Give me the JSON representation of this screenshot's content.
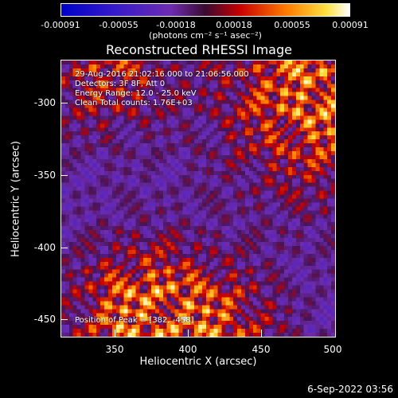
{
  "colorbar": {
    "ticks": [
      "-0.00091",
      "-0.00055",
      "-0.00018",
      "0.00018",
      "0.00055",
      "0.00091"
    ],
    "units": "(photons cm⁻² s⁻¹ asec⁻²)"
  },
  "title": "Reconstructed RHESSI Image",
  "annotations": {
    "time": "29-Aug-2016 21:02:16.000 to 21:06:56.000",
    "detectors": "Detectors: 3F 8F, Att 0",
    "energy": "Energy Range: 12.0 - 25.0 keV",
    "method": "Clean    Total counts: 1.76E+03",
    "peak": "Position of Peak = [382, -458]"
  },
  "axes": {
    "xlabel": "Heliocentric X (arcsec)",
    "ylabel": "Heliocentric Y (arcsec)",
    "xticks": [
      "350",
      "400",
      "450",
      "500"
    ],
    "yticks": [
      "-300",
      "-350",
      "-400",
      "-450"
    ]
  },
  "timestamp": "6-Sep-2022 03:56",
  "colors": {
    "background": "#000000",
    "frame": "#ffffff"
  }
}
